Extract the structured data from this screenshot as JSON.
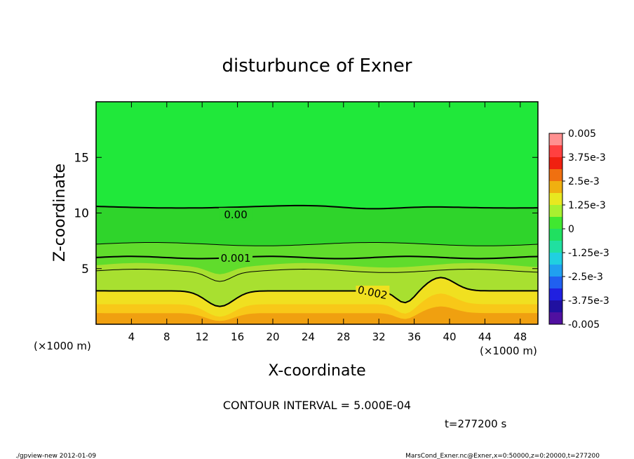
{
  "chart_data": {
    "type": "heatmap",
    "title": "disturbunce of Exner",
    "xlabel": "X-coordinate",
    "ylabel": "Z-coordinate",
    "x_unit_left": "(×1000 m)",
    "x_unit_right": "(×1000 m)",
    "xlim": [
      0,
      50
    ],
    "ylim": [
      0,
      20
    ],
    "x_ticks": [
      4,
      8,
      12,
      16,
      20,
      24,
      28,
      32,
      36,
      40,
      44,
      48
    ],
    "y_ticks": [
      5,
      10,
      15
    ],
    "colorbar": {
      "labels": [
        "0.005",
        "3.75e-3",
        "2.5e-3",
        "1.25e-3",
        "0",
        "-1.25e-3",
        "-2.5e-3",
        "-3.75e-3",
        "-0.005"
      ],
      "values": [
        0.005,
        0.00375,
        0.0025,
        0.00125,
        0,
        -0.00125,
        -0.0025,
        -0.00375,
        -0.005
      ]
    },
    "contour_labels": [
      "0.00",
      "0.001",
      "0.002"
    ],
    "contour_interval_text": "CONTOUR INTERVAL = 5.000E-04",
    "time_text": "t=277200 s"
  },
  "footer": {
    "left": "./gpview-new  2012-01-09",
    "right": "MarsCond_Exner.nc@Exner,x=0:50000,z=0:20000,t=277200"
  },
  "colors": {
    "top_green": "#20e83a",
    "mid_green": "#2fd42b",
    "yellow_green": "#a8e830",
    "yellow": "#f0e020",
    "orange": "#f0a010",
    "deep_orange": "#e88410",
    "contour": "#000000"
  }
}
